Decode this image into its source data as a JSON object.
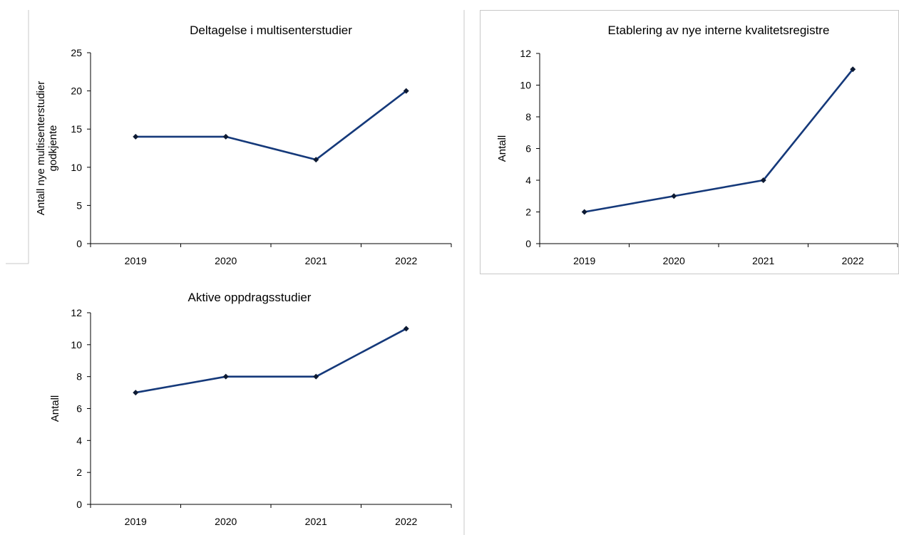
{
  "chart_data": [
    {
      "type": "line",
      "title": "Deltagelse i multisenterstudier",
      "ylabel": [
        "Antall nye multisenterstudier",
        "godkjente"
      ],
      "categories": [
        "2019",
        "2020",
        "2021",
        "2022"
      ],
      "ylim": [
        0,
        25
      ],
      "yticks": [
        0,
        5,
        10,
        15,
        20,
        25
      ],
      "values": [
        14,
        14,
        11,
        20
      ],
      "color": "#15397a",
      "grid": false
    },
    {
      "type": "line",
      "title": "Etablering av nye interne kvalitetsregistre",
      "ylabel": [
        "Antall"
      ],
      "categories": [
        "2019",
        "2020",
        "2021",
        "2022"
      ],
      "ylim": [
        0,
        12
      ],
      "yticks": [
        0,
        2,
        4,
        6,
        8,
        10,
        12
      ],
      "values": [
        2,
        3,
        4,
        11
      ],
      "color": "#15397a",
      "grid": false
    },
    {
      "type": "line",
      "title": "Aktive oppdragsstudier",
      "ylabel": [
        "Antall"
      ],
      "categories": [
        "2019",
        "2020",
        "2021",
        "2022"
      ],
      "ylim": [
        0,
        12
      ],
      "yticks": [
        0,
        2,
        4,
        6,
        8,
        10,
        12
      ],
      "values": [
        7,
        8,
        8,
        11
      ],
      "color": "#15397a",
      "grid": false
    }
  ]
}
